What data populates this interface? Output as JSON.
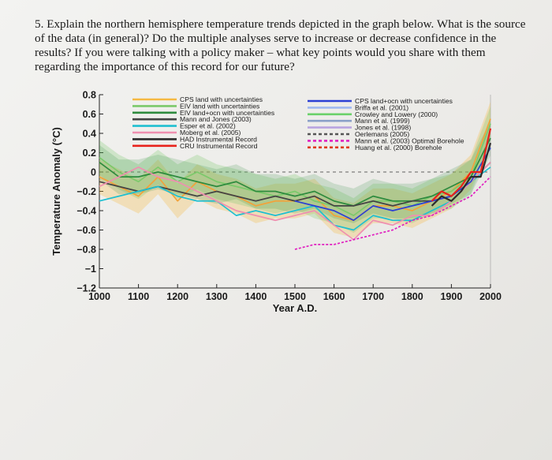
{
  "question": "5. Explain the northern hemisphere temperature trends depicted in the graph below. What is the source of the data (in general)? Do the multiple analyses serve to increase or decrease confidence in the results? If you were talking with a policy maker – what key points would you share with them regarding the importance of this record for our future?",
  "chart_data": {
    "type": "line",
    "xlabel": "Year A.D.",
    "ylabel": "Temperature Anomaly (°C)",
    "xlim": [
      1000,
      2000
    ],
    "ylim": [
      -1.2,
      0.8
    ],
    "x_ticks": [
      "1000",
      "1100",
      "1200",
      "1300",
      "1400",
      "1500",
      "1600",
      "1700",
      "1800",
      "1900",
      "2000"
    ],
    "y_ticks": [
      "0.8",
      "0.6",
      "0.4",
      "0.2",
      "0",
      "−0.2",
      "−0.4",
      "−0.6",
      "−0.8",
      "−1",
      "−1.2"
    ],
    "legend_left": [
      {
        "name": "CPS land with uncertainties",
        "color": "#f5b942"
      },
      {
        "name": "EIV land with uncertainties",
        "color": "#7bc96a"
      },
      {
        "name": "EIV land+ocn with uncertainties",
        "color": "#2e8b3e"
      },
      {
        "name": "Mann and Jones (2003)",
        "color": "#444444"
      },
      {
        "name": "Esper et al. (2002)",
        "color": "#1fbfd0"
      },
      {
        "name": "Moberg et al. (2005)",
        "color": "#ef8fb0"
      },
      {
        "name": "HAD Instrumental Record",
        "color": "#2b2b2b"
      },
      {
        "name": "CRU Instrumental Record",
        "color": "#e8221b"
      }
    ],
    "legend_right": [
      {
        "name": "CPS land+ocn with uncertainties",
        "color": "#2c3fd4"
      },
      {
        "name": "Briffa et al. (2001)",
        "color": "#9fb8f0"
      },
      {
        "name": "Crowley and Lowery (2000)",
        "color": "#6ad16a"
      },
      {
        "name": "Mann et al. (1999)",
        "color": "#8aa0c8"
      },
      {
        "name": "Jones et al. (1998)",
        "color": "#b9a4e0"
      },
      {
        "name": "Oerlemans (2005)",
        "color": "#555555",
        "dashed": true
      },
      {
        "name": "Mann et al. (2003) Optimal Borehole",
        "color": "#e020c0",
        "dashed": true
      },
      {
        "name": "Huang et al. (2000) Borehole",
        "color": "#e03a1a",
        "dashed": true
      }
    ],
    "series": [
      {
        "name": "CPS land with uncertainties",
        "color": "#f2a23a",
        "x": [
          1000,
          1050,
          1100,
          1150,
          1200,
          1250,
          1300,
          1350,
          1400,
          1450,
          1500,
          1550,
          1600,
          1650,
          1700,
          1750,
          1800,
          1850,
          1900,
          1950,
          2000
        ],
        "y": [
          -0.05,
          -0.15,
          -0.25,
          -0.05,
          -0.3,
          -0.1,
          -0.2,
          -0.25,
          -0.35,
          -0.3,
          -0.3,
          -0.25,
          -0.45,
          -0.5,
          -0.35,
          -0.35,
          -0.4,
          -0.3,
          -0.2,
          0.0,
          0.55
        ]
      },
      {
        "name": "EIV land with uncertainties",
        "color": "#7bc96a",
        "x": [
          1000,
          1050,
          1100,
          1150,
          1200,
          1250,
          1300,
          1350,
          1400,
          1450,
          1500,
          1550,
          1600,
          1650,
          1700,
          1750,
          1800,
          1850,
          1900,
          1950,
          2000
        ],
        "y": [
          0.15,
          0.0,
          -0.1,
          0.05,
          -0.1,
          0.0,
          -0.1,
          -0.15,
          -0.2,
          -0.25,
          -0.2,
          -0.3,
          -0.35,
          -0.45,
          -0.3,
          -0.3,
          -0.35,
          -0.25,
          -0.2,
          -0.05,
          0.5
        ]
      },
      {
        "name": "EIV land+ocn with uncertainties",
        "color": "#2e8b3e",
        "x": [
          1000,
          1050,
          1100,
          1150,
          1200,
          1250,
          1300,
          1350,
          1400,
          1450,
          1500,
          1550,
          1600,
          1650,
          1700,
          1750,
          1800,
          1850,
          1900,
          1950,
          2000
        ],
        "y": [
          0.1,
          -0.05,
          -0.05,
          0.0,
          -0.05,
          -0.1,
          -0.15,
          -0.1,
          -0.2,
          -0.2,
          -0.25,
          -0.2,
          -0.3,
          -0.35,
          -0.25,
          -0.3,
          -0.3,
          -0.25,
          -0.15,
          -0.05,
          0.35
        ]
      },
      {
        "name": "Mann and Jones (2003)",
        "color": "#444444",
        "x": [
          1000,
          1050,
          1100,
          1150,
          1200,
          1250,
          1300,
          1350,
          1400,
          1450,
          1500,
          1550,
          1600,
          1650,
          1700,
          1750,
          1800,
          1850,
          1900,
          1950,
          2000
        ],
        "y": [
          -0.1,
          -0.15,
          -0.2,
          -0.15,
          -0.2,
          -0.25,
          -0.2,
          -0.25,
          -0.3,
          -0.25,
          -0.3,
          -0.25,
          -0.35,
          -0.35,
          -0.3,
          -0.35,
          -0.3,
          -0.3,
          -0.25,
          -0.1,
          0.1
        ]
      },
      {
        "name": "Esper et al. (2002)",
        "color": "#1fbfd0",
        "x": [
          1000,
          1050,
          1100,
          1150,
          1200,
          1250,
          1300,
          1350,
          1400,
          1450,
          1500,
          1550,
          1600,
          1650,
          1700,
          1750,
          1800,
          1850,
          1900,
          1950,
          2000
        ],
        "y": [
          -0.3,
          -0.25,
          -0.2,
          -0.15,
          -0.25,
          -0.3,
          -0.3,
          -0.45,
          -0.4,
          -0.45,
          -0.4,
          -0.35,
          -0.55,
          -0.6,
          -0.45,
          -0.5,
          -0.5,
          -0.4,
          -0.3,
          -0.1,
          0.05
        ]
      },
      {
        "name": "Moberg et al. (2005)",
        "color": "#ef8fb0",
        "x": [
          1000,
          1050,
          1100,
          1150,
          1200,
          1250,
          1300,
          1350,
          1400,
          1450,
          1500,
          1550,
          1600,
          1650,
          1700,
          1750,
          1800,
          1850,
          1900,
          1950,
          2000
        ],
        "y": [
          -0.15,
          -0.05,
          0.05,
          -0.05,
          -0.1,
          -0.2,
          -0.3,
          -0.4,
          -0.45,
          -0.5,
          -0.45,
          -0.4,
          -0.55,
          -0.7,
          -0.5,
          -0.55,
          -0.45,
          -0.45,
          -0.3,
          -0.1,
          0.1
        ]
      },
      {
        "name": "CPS land+ocn with uncertainties",
        "color": "#2c3fd4",
        "x": [
          1500,
          1550,
          1600,
          1650,
          1700,
          1750,
          1800,
          1850,
          1900,
          1950,
          2000
        ],
        "y": [
          -0.3,
          -0.35,
          -0.4,
          -0.5,
          -0.35,
          -0.4,
          -0.35,
          -0.3,
          -0.25,
          -0.1,
          0.25
        ]
      },
      {
        "name": "Mann et al. (2003) Optimal Borehole",
        "color": "#e020c0",
        "x": [
          1500,
          1550,
          1600,
          1650,
          1700,
          1750,
          1800,
          1850,
          1900,
          1950,
          2000
        ],
        "y": [
          -0.8,
          -0.75,
          -0.75,
          -0.7,
          -0.65,
          -0.6,
          -0.5,
          -0.45,
          -0.35,
          -0.25,
          -0.05
        ]
      },
      {
        "name": "HAD Instrumental Record",
        "color": "#2b2b2b",
        "x": [
          1850,
          1875,
          1900,
          1925,
          1950,
          1975,
          2000
        ],
        "y": [
          -0.35,
          -0.25,
          -0.3,
          -0.2,
          -0.05,
          -0.05,
          0.3
        ]
      },
      {
        "name": "CRU Instrumental Record",
        "color": "#e8221b",
        "x": [
          1850,
          1875,
          1900,
          1925,
          1950,
          1975,
          2000
        ],
        "y": [
          -0.3,
          -0.2,
          -0.25,
          -0.15,
          0.0,
          0.0,
          0.45
        ]
      }
    ]
  }
}
